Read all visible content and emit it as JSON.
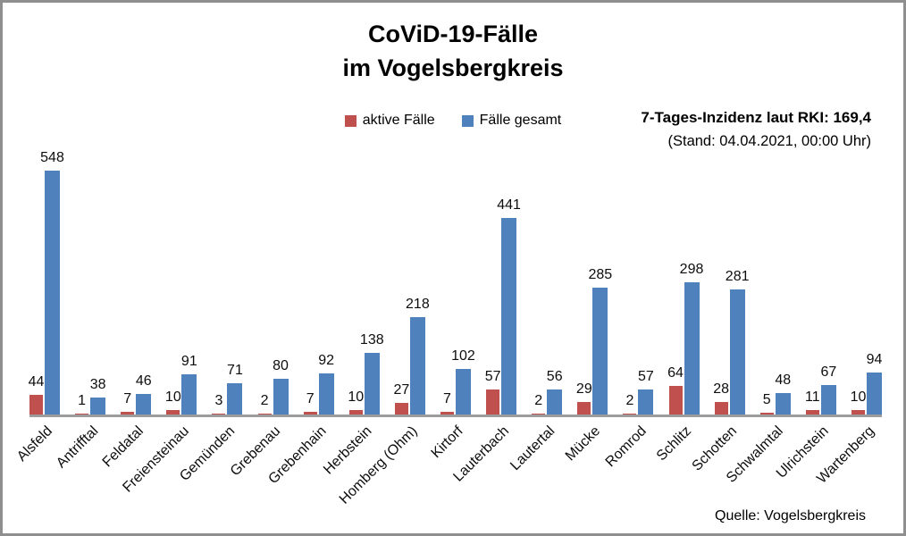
{
  "title": {
    "line1": "CoViD-19-Fälle",
    "line2": "im Vogelsbergkreis"
  },
  "legend": [
    {
      "label": "aktive Fälle",
      "color": "#C0504D"
    },
    {
      "label": "Fälle gesamt",
      "color": "#4F81BD"
    }
  ],
  "incidence": {
    "line1": "7-Tages-Inzidenz laut RKI: 169,4",
    "line2": "(Stand: 04.04.2021, 00:00 Uhr)"
  },
  "source": "Quelle: Vogelsbergkreis",
  "colors": {
    "active": "#C0504D",
    "total": "#4F81BD",
    "axis": "#9c9c9c",
    "frame_border": "#8f8f8f"
  },
  "chart_data": {
    "type": "bar",
    "title": "CoViD-19-Fälle im Vogelsbergkreis",
    "categories": [
      "Alsfeld",
      "Antrifftal",
      "Feldatal",
      "Freiensteinau",
      "Gemünden",
      "Grebenau",
      "Grebenhain",
      "Herbstein",
      "Homberg (Ohm)",
      "Kirtorf",
      "Lauterbach",
      "Lautertal",
      "Mücke",
      "Romrod",
      "Schlitz",
      "Schotten",
      "Schwalmtal",
      "Ulrichstein",
      "Wartenberg"
    ],
    "series": [
      {
        "name": "aktive Fälle",
        "color": "#C0504D",
        "values": [
          44,
          1,
          7,
          10,
          3,
          2,
          7,
          10,
          27,
          7,
          57,
          2,
          29,
          2,
          64,
          28,
          5,
          11,
          10
        ]
      },
      {
        "name": "Fälle gesamt",
        "color": "#4F81BD",
        "values": [
          548,
          38,
          46,
          91,
          71,
          80,
          92,
          138,
          218,
          102,
          441,
          56,
          285,
          57,
          298,
          281,
          48,
          67,
          94
        ]
      }
    ],
    "xlabel": "",
    "ylabel": "",
    "ylim": [
      0,
      560
    ],
    "grid": false,
    "y_axis_visible": false,
    "legend_position": "top",
    "data_labels": "outside-end",
    "x_tick_rotation": 45
  }
}
